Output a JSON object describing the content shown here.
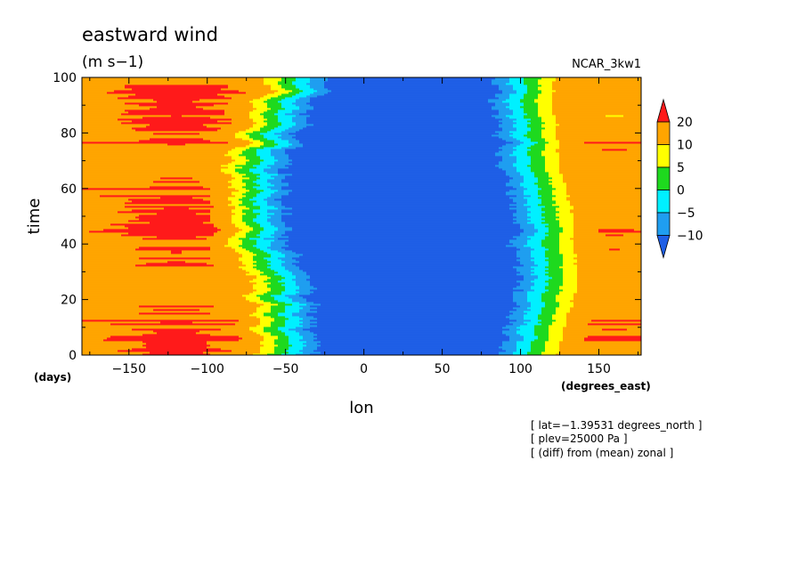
{
  "chart_data": {
    "type": "heatmap",
    "title": "eastward wind",
    "units": "(m s−1)",
    "dataset_label": "NCAR_3kw1",
    "xlabel": "lon",
    "xunits": "(degrees_east)",
    "ylabel": "time",
    "yunits": "(days)",
    "xlim": [
      -180,
      177
    ],
    "ylim": [
      0,
      100
    ],
    "xticks": [
      -150,
      -100,
      -50,
      0,
      50,
      100,
      150
    ],
    "xtick_labels": [
      "−150",
      "−100",
      "−50",
      "0",
      "50",
      "100",
      "150"
    ],
    "yticks": [
      0,
      20,
      40,
      60,
      80,
      100
    ],
    "ytick_labels": [
      "0",
      "20",
      "40",
      "60",
      "80",
      "100"
    ],
    "colorbar": {
      "levels": [
        -10,
        -5,
        0,
        5,
        10,
        20
      ],
      "labels": [
        "−10",
        "−5",
        "0",
        "5",
        "10",
        "20"
      ],
      "colors": [
        "#1f5fe6",
        "#1f9ef0",
        "#00f0ff",
        "#1ed91e",
        "#ffff00",
        "#ffa500",
        "#ff1a1a"
      ],
      "extend": "both"
    },
    "annotations": [
      "[ lat=−1.39531 degrees_north ]",
      "[ plev=25000 Pa ]",
      "[ (diff) from (mean) zonal ]"
    ],
    "pattern_description": "Strong westerly anomalies (10 to >20 m/s) from -180 to about -60 degrees_east and from about 120 to 177 degrees_east; strong easterly anomalies (<-10 m/s) from about -40 to 90 degrees_east, widest around day 50."
  }
}
